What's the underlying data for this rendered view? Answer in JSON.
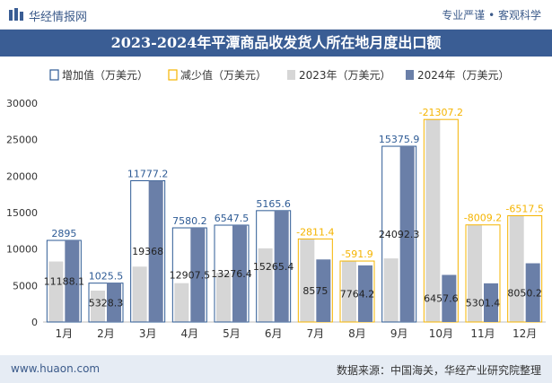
{
  "header": {
    "brand": "华经情报网",
    "tagline": "专业严谨 • 客观科学"
  },
  "footer": {
    "url": "www.huaon.com",
    "source": "数据来源：中国海关，华经产业研究院整理"
  },
  "colors": {
    "inc": "#2e5b95",
    "dec": "#f5b400",
    "s2023": "#d6d6d6",
    "s2024": "#6a7fa8",
    "titlebar": "#3a5d94"
  },
  "chart_data": {
    "type": "bar",
    "title": "2023-2024年平潭商品收发货人所在地月度出口额",
    "legend": [
      "增加值（万美元）",
      "减少值（万美元）",
      "2023年（万美元）",
      "2024年（万美元）"
    ],
    "categories": [
      "1月",
      "2月",
      "3月",
      "4月",
      "5月",
      "6月",
      "7月",
      "8月",
      "9月",
      "10月",
      "11月",
      "12月"
    ],
    "series": [
      {
        "name": "2023年（万美元）",
        "values": [
          8293.1,
          4302.8,
          7590.8,
          5327.3,
          6728.9,
          10099.8,
          11386.4,
          8356.1,
          8716.4,
          27764.8,
          13310.6,
          14567.7
        ]
      },
      {
        "name": "2024年（万美元）",
        "values": [
          11188.1,
          5328.3,
          19368,
          12907.5,
          13276.4,
          15265.4,
          8575,
          7764.2,
          24092.3,
          6457.6,
          5301.4,
          8050.2
        ]
      }
    ],
    "change": [
      2895,
      1025.5,
      11777.2,
      7580.2,
      6547.5,
      5165.6,
      -2811.4,
      -591.9,
      15375.9,
      -21307.2,
      -8009.2,
      -6517.5
    ],
    "ylim": [
      0,
      30000
    ],
    "yticks": [
      "0",
      "5000",
      "10000",
      "15000",
      "20000",
      "25000",
      "30000"
    ],
    "legend_position": "top",
    "grid": false
  }
}
